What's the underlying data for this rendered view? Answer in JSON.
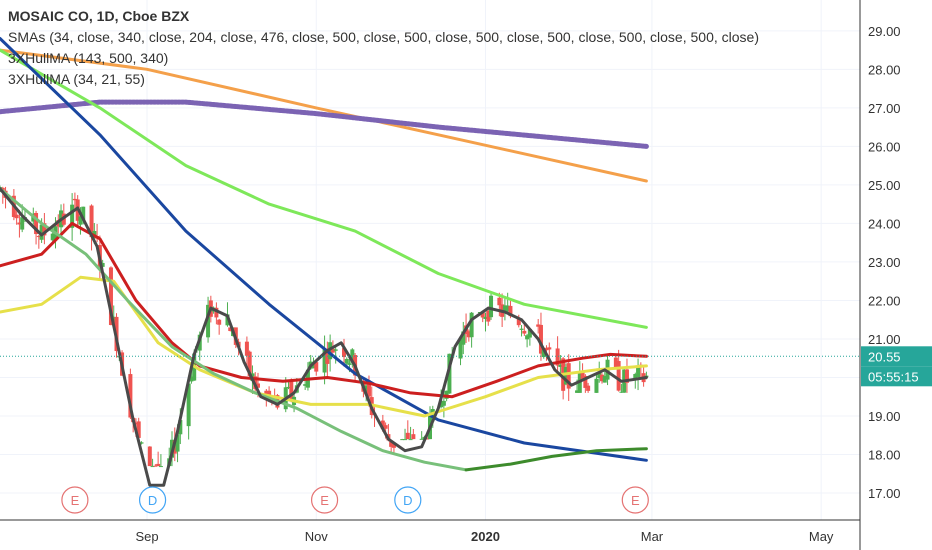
{
  "header": {
    "symbol_title": "MOSAIC CO, 1D, Cboe BZX",
    "indicators": [
      "SMAs (34, close, 340, close, 204, close, 476, close, 500, close, 500, close, 500, close, 500, close, 500, close, 500, close)",
      "3XHullMA (143, 500, 340)",
      "3XHullMA (34, 21, 55)"
    ]
  },
  "price_axis": {
    "ticks": [
      "29.00",
      "28.00",
      "27.00",
      "26.00",
      "25.00",
      "24.00",
      "23.00",
      "22.00",
      "21.00",
      "20.00",
      "19.00",
      "18.00",
      "17.00"
    ],
    "last_price": "20.55",
    "countdown": "05:55:15",
    "last_price_color": "#26a69a"
  },
  "time_axis": {
    "ticks": [
      {
        "label": "Sep",
        "x": "2019-09-01",
        "bold": false
      },
      {
        "label": "Nov",
        "x": "2019-11-01",
        "bold": false
      },
      {
        "label": "2020",
        "x": "2020-01-01",
        "bold": true
      },
      {
        "label": "Mar",
        "x": "2020-03-01",
        "bold": false
      },
      {
        "label": "May",
        "x": "2020-05-01",
        "bold": false
      }
    ]
  },
  "events": [
    {
      "label": "E",
      "kind": "earnings",
      "x": "2019-08-06",
      "color": "#e57373"
    },
    {
      "label": "D",
      "kind": "dividend",
      "x": "2019-09-03",
      "color": "#42a5f5"
    },
    {
      "label": "E",
      "kind": "earnings",
      "x": "2019-11-04",
      "color": "#e57373"
    },
    {
      "label": "D",
      "kind": "dividend",
      "x": "2019-12-04",
      "color": "#42a5f5"
    },
    {
      "label": "E",
      "kind": "earnings",
      "x": "2020-02-24",
      "color": "#e57373"
    }
  ],
  "colors": {
    "up_candle": "#4caf50",
    "down_candle": "#ef5350",
    "grid": "#f0f3fa",
    "axis_text": "#333333"
  },
  "chart_data": {
    "type": "candlestick",
    "title": "MOSAIC CO, 1D, Cboe BZX",
    "x_range": [
      "2019-07-10",
      "2020-05-15"
    ],
    "ylim": [
      16.3,
      29.8
    ],
    "grid": true,
    "candles_monthly_summary": [
      {
        "period": "2019-07",
        "open": 24.6,
        "high": 25.6,
        "low": 22.3,
        "close": 24.7
      },
      {
        "period": "2019-08",
        "open": 24.7,
        "high": 24.8,
        "low": 17.3,
        "close": 18.0
      },
      {
        "period": "2019-09",
        "open": 18.0,
        "high": 23.1,
        "low": 17.7,
        "close": 21.3
      },
      {
        "period": "2019-10",
        "open": 21.3,
        "high": 21.3,
        "low": 19.1,
        "close": 20.2
      },
      {
        "period": "2019-11",
        "open": 20.2,
        "high": 22.5,
        "low": 18.0,
        "close": 19.2
      },
      {
        "period": "2019-12",
        "open": 19.2,
        "high": 21.7,
        "low": 18.4,
        "close": 21.6
      },
      {
        "period": "2020-01",
        "open": 21.6,
        "high": 22.2,
        "low": 18.2,
        "close": 19.6
      },
      {
        "period": "2020-02",
        "open": 19.6,
        "high": 21.6,
        "low": 19.6,
        "close": 20.55
      }
    ],
    "series": [
      {
        "color": "#f4a04a",
        "points": [
          [
            "2019-07-10",
            28.5
          ],
          [
            "2019-09-01",
            28.0
          ],
          [
            "2019-11-01",
            27.0
          ],
          [
            "2019-12-15",
            26.3
          ],
          [
            "2020-02-28",
            25.1
          ]
        ]
      },
      {
        "color": "#7b63b3",
        "points": [
          [
            "2019-07-10",
            26.9
          ],
          [
            "2019-08-15",
            27.15
          ],
          [
            "2019-09-15",
            27.15
          ],
          [
            "2019-11-01",
            26.85
          ],
          [
            "2019-12-15",
            26.5
          ],
          [
            "2020-02-28",
            26.0
          ]
        ]
      },
      {
        "color": "#7ee85a",
        "points": [
          [
            "2019-07-10",
            28.5
          ],
          [
            "2019-08-15",
            27.0
          ],
          [
            "2019-09-15",
            25.5
          ],
          [
            "2019-10-15",
            24.5
          ],
          [
            "2019-11-15",
            23.8
          ],
          [
            "2019-12-15",
            22.7
          ],
          [
            "2020-01-15",
            21.9
          ],
          [
            "2020-02-28",
            21.3
          ]
        ]
      },
      {
        "color": "#1a47a0",
        "points": [
          [
            "2019-07-10",
            28.8
          ],
          [
            "2019-08-15",
            26.3
          ],
          [
            "2019-09-15",
            23.8
          ],
          [
            "2019-10-15",
            21.9
          ],
          [
            "2019-11-15",
            20.1
          ],
          [
            "2019-12-15",
            18.9
          ],
          [
            "2020-01-15",
            18.3
          ],
          [
            "2020-02-28",
            17.85
          ]
        ]
      },
      {
        "color": "#e6e04a",
        "points": [
          [
            "2019-07-10",
            21.7
          ],
          [
            "2019-07-25",
            21.9
          ],
          [
            "2019-08-08",
            22.6
          ],
          [
            "2019-08-20",
            22.5
          ],
          [
            "2019-09-05",
            20.9
          ],
          [
            "2019-09-20",
            20.2
          ],
          [
            "2019-10-10",
            19.6
          ],
          [
            "2019-10-30",
            19.3
          ],
          [
            "2019-11-20",
            19.3
          ],
          [
            "2019-12-10",
            19.0
          ],
          [
            "2020-01-01",
            19.5
          ],
          [
            "2020-01-20",
            20.0
          ],
          [
            "2020-02-10",
            20.2
          ],
          [
            "2020-02-28",
            20.3
          ]
        ]
      },
      {
        "color": "#cc1f1f",
        "points": [
          [
            "2019-07-10",
            22.9
          ],
          [
            "2019-07-25",
            23.2
          ],
          [
            "2019-08-05",
            24.0
          ],
          [
            "2019-08-15",
            23.6
          ],
          [
            "2019-08-28",
            22.0
          ],
          [
            "2019-09-10",
            20.9
          ],
          [
            "2019-09-20",
            20.3
          ],
          [
            "2019-10-05",
            20.0
          ],
          [
            "2019-10-20",
            19.9
          ],
          [
            "2019-11-05",
            20.0
          ],
          [
            "2019-11-20",
            19.85
          ],
          [
            "2019-12-05",
            19.6
          ],
          [
            "2019-12-20",
            19.5
          ],
          [
            "2020-01-05",
            19.9
          ],
          [
            "2020-01-20",
            20.3
          ],
          [
            "2020-02-05",
            20.5
          ],
          [
            "2020-02-15",
            20.6
          ],
          [
            "2020-02-28",
            20.55
          ]
        ]
      },
      {
        "color": "#78c07a",
        "points": [
          [
            "2019-07-10",
            24.9
          ],
          [
            "2019-07-25",
            24.0
          ],
          [
            "2019-08-10",
            23.2
          ],
          [
            "2019-08-25",
            22.0
          ],
          [
            "2019-09-10",
            20.8
          ],
          [
            "2019-09-25",
            20.1
          ],
          [
            "2019-10-10",
            19.6
          ],
          [
            "2019-10-25",
            19.2
          ],
          [
            "2019-11-10",
            18.6
          ],
          [
            "2019-11-25",
            18.1
          ],
          [
            "2019-12-10",
            17.8
          ],
          [
            "2019-12-25",
            17.6
          ]
        ]
      },
      {
        "color": "#3d8b2c",
        "points": [
          [
            "2019-12-25",
            17.6
          ],
          [
            "2020-01-10",
            17.75
          ],
          [
            "2020-01-25",
            17.95
          ],
          [
            "2020-02-10",
            18.1
          ],
          [
            "2020-02-28",
            18.15
          ]
        ]
      },
      {
        "color": "#4a4a4a",
        "points": [
          [
            "2019-07-10",
            24.9
          ],
          [
            "2019-07-18",
            24.2
          ],
          [
            "2019-07-25",
            23.7
          ],
          [
            "2019-08-01",
            24.1
          ],
          [
            "2019-08-07",
            24.4
          ],
          [
            "2019-08-14",
            23.4
          ],
          [
            "2019-08-21",
            21.0
          ],
          [
            "2019-08-27",
            18.9
          ],
          [
            "2019-09-02",
            17.2
          ],
          [
            "2019-09-07",
            17.2
          ],
          [
            "2019-09-12",
            18.6
          ],
          [
            "2019-09-18",
            20.6
          ],
          [
            "2019-09-24",
            21.8
          ],
          [
            "2019-09-30",
            21.6
          ],
          [
            "2019-10-06",
            20.4
          ],
          [
            "2019-10-12",
            19.5
          ],
          [
            "2019-10-18",
            19.3
          ],
          [
            "2019-10-24",
            19.6
          ],
          [
            "2019-10-30",
            20.3
          ],
          [
            "2019-11-05",
            20.7
          ],
          [
            "2019-11-10",
            20.9
          ],
          [
            "2019-11-15",
            20.3
          ],
          [
            "2019-11-21",
            19.2
          ],
          [
            "2019-11-27",
            18.4
          ],
          [
            "2019-12-03",
            18.1
          ],
          [
            "2019-12-09",
            18.2
          ],
          [
            "2019-12-15",
            19.2
          ],
          [
            "2019-12-21",
            20.8
          ],
          [
            "2019-12-27",
            21.5
          ],
          [
            "2020-01-02",
            21.8
          ],
          [
            "2020-01-08",
            21.7
          ],
          [
            "2020-01-14",
            21.5
          ],
          [
            "2020-01-20",
            21.0
          ],
          [
            "2020-01-26",
            20.2
          ],
          [
            "2020-02-01",
            19.8
          ],
          [
            "2020-02-07",
            20.0
          ],
          [
            "2020-02-13",
            20.2
          ],
          [
            "2020-02-19",
            19.9
          ],
          [
            "2020-02-28",
            20.0
          ]
        ]
      }
    ]
  }
}
